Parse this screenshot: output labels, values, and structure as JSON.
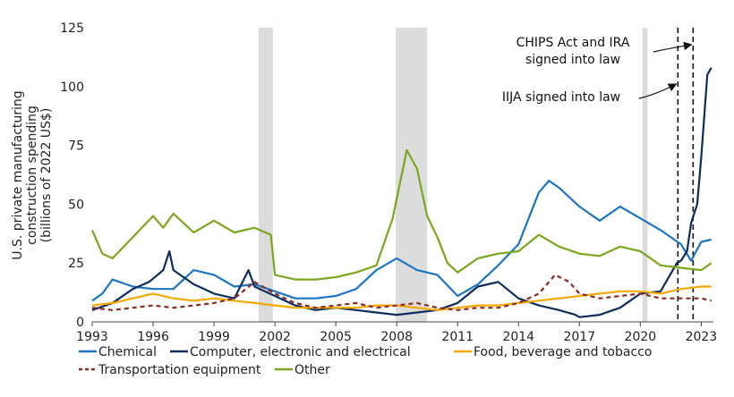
{
  "chart_data": {
    "type": "line",
    "ylabel_lines": [
      "U.S. private manufacturing",
      "construction spending",
      "(billions of 2022 US$)"
    ],
    "ylim": [
      0,
      125
    ],
    "yticks": [
      0,
      25,
      50,
      75,
      100,
      125
    ],
    "xlim": [
      1993,
      2023.6
    ],
    "xticks": [
      1993,
      1996,
      1999,
      2002,
      2005,
      2008,
      2011,
      2014,
      2017,
      2020,
      2023
    ],
    "grid": false,
    "legend_position": "bottom",
    "recession_shading": [
      [
        2001.2,
        2001.9
      ],
      [
        2007.95,
        2009.5
      ],
      [
        2020.1,
        2020.35
      ]
    ],
    "annotations": [
      {
        "id": "chips",
        "lines": [
          "CHIPS Act and IRA",
          "signed into law"
        ],
        "x": 2022.6
      },
      {
        "id": "iija",
        "lines": [
          "IIJA signed into law"
        ],
        "x": 2021.85
      }
    ],
    "series": [
      {
        "name": "Chemical",
        "color": "#1B75C4",
        "dash": "",
        "x": [
          1993,
          1993.5,
          1994,
          1995,
          1996,
          1997,
          1998,
          1999,
          2000,
          2001,
          2002,
          2003,
          2004,
          2005,
          2006,
          2007,
          2008,
          2009,
          2010,
          2011,
          2012,
          2013,
          2014,
          2015,
          2015.5,
          2016,
          2017,
          2018,
          2019,
          2020,
          2021,
          2022,
          2022.5,
          2023,
          2023.5
        ],
        "y": [
          9,
          12,
          18,
          15,
          14,
          14,
          22,
          20,
          15,
          16,
          13,
          10,
          10,
          11,
          14,
          22,
          27,
          22,
          20,
          11,
          16,
          24,
          33,
          55,
          60,
          57,
          49,
          43,
          49,
          44,
          39,
          33,
          26,
          34,
          35
        ]
      },
      {
        "name": "Computer, electronic and electrical",
        "color": "#0D2D5C",
        "dash": "",
        "x": [
          1993,
          1994,
          1995,
          1995.8,
          1996.5,
          1996.8,
          1997,
          1998,
          1999,
          2000,
          2000.7,
          2001,
          2002,
          2003,
          2004,
          2005,
          2006,
          2007,
          2008,
          2009,
          2010,
          2011,
          2012,
          2013,
          2014,
          2015,
          2016,
          2016.8,
          2017,
          2018,
          2019,
          2020,
          2021,
          2021.8,
          2022,
          2022.3,
          2022.5,
          2022.8,
          2023,
          2023.3,
          2023.5
        ],
        "y": [
          5,
          8,
          14,
          17,
          22,
          30,
          22,
          16,
          12,
          10,
          22,
          15,
          11,
          7,
          5,
          6,
          5,
          4,
          3,
          4,
          5,
          8,
          15,
          17,
          10,
          7,
          5,
          3,
          2,
          3,
          6,
          12,
          13,
          25,
          26,
          30,
          42,
          50,
          70,
          105,
          108
        ]
      },
      {
        "name": "Food, beverage and tobacco",
        "color": "#F5A800",
        "dash": "",
        "x": [
          1993,
          1994,
          1995,
          1996,
          1997,
          1998,
          1999,
          2000,
          2001,
          2002,
          2003,
          2004,
          2005,
          2006,
          2007,
          2008,
          2009,
          2010,
          2011,
          2012,
          2013,
          2014,
          2015,
          2016,
          2017,
          2018,
          2019,
          2020,
          2021,
          2022,
          2023,
          2023.5
        ],
        "y": [
          7,
          8,
          10,
          12,
          10,
          9,
          10,
          9,
          8,
          7,
          6,
          6,
          6,
          6,
          7,
          7,
          6,
          5,
          6,
          7,
          7,
          8,
          9,
          10,
          11,
          12,
          13,
          13,
          12,
          14,
          15,
          15
        ]
      },
      {
        "name": "Transportation equipment",
        "color": "#8C2A1E",
        "dash": "5,4",
        "x": [
          1993,
          1994,
          1995,
          1996,
          1997,
          1998,
          1999,
          2000,
          2001,
          2002,
          2003,
          2004,
          2005,
          2006,
          2007,
          2008,
          2009,
          2010,
          2011,
          2012,
          2013,
          2014,
          2015,
          2015.8,
          2016.5,
          2017,
          2018,
          2019,
          2020,
          2021,
          2022,
          2023,
          2023.5
        ],
        "y": [
          6,
          5,
          6,
          7,
          6,
          7,
          8,
          10,
          17,
          12,
          8,
          6,
          7,
          8,
          6,
          7,
          8,
          6,
          5,
          6,
          6,
          8,
          12,
          20,
          17,
          12,
          10,
          11,
          12,
          10,
          10,
          10,
          9
        ]
      },
      {
        "name": "Other",
        "color": "#7BA61E",
        "dash": "",
        "x": [
          1993,
          1993.5,
          1994,
          1995,
          1996,
          1996.5,
          1997,
          1998,
          1999,
          2000,
          2001,
          2001.8,
          2002,
          2003,
          2004,
          2005,
          2006,
          2007,
          2007.8,
          2008.5,
          2009,
          2009.5,
          2010,
          2010.5,
          2011,
          2012,
          2013,
          2014,
          2015,
          2016,
          2017,
          2018,
          2019,
          2020,
          2021,
          2022,
          2023,
          2023.5
        ],
        "y": [
          39,
          29,
          27,
          36,
          45,
          40,
          46,
          38,
          43,
          38,
          40,
          37,
          20,
          18,
          18,
          19,
          21,
          24,
          44,
          73,
          65,
          45,
          36,
          25,
          21,
          27,
          29,
          30,
          37,
          32,
          29,
          28,
          32,
          30,
          24,
          23,
          22,
          25
        ]
      }
    ]
  }
}
